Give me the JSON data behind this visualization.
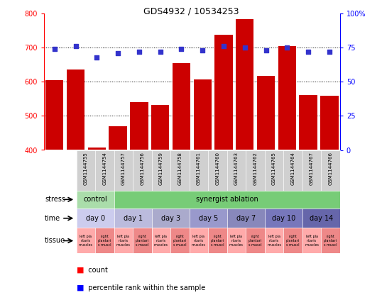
{
  "title": "GDS4932 / 10534253",
  "samples": [
    "GSM1144755",
    "GSM1144754",
    "GSM1144757",
    "GSM1144756",
    "GSM1144759",
    "GSM1144758",
    "GSM1144761",
    "GSM1144760",
    "GSM1144763",
    "GSM1144762",
    "GSM1144765",
    "GSM1144764",
    "GSM1144767",
    "GSM1144766"
  ],
  "counts": [
    605,
    635,
    408,
    470,
    540,
    532,
    655,
    607,
    737,
    783,
    618,
    705,
    562,
    560
  ],
  "percentiles": [
    74,
    76,
    68,
    71,
    72,
    72,
    74,
    73,
    76,
    75,
    73,
    75,
    72,
    72
  ],
  "ylim_left": [
    400,
    800
  ],
  "ylim_right": [
    0,
    100
  ],
  "yticks_left": [
    400,
    500,
    600,
    700,
    800
  ],
  "yticks_right": [
    0,
    25,
    50,
    75,
    100
  ],
  "bar_color": "#cc0000",
  "dot_color": "#3333cc",
  "xticklabel_bg": "#d0d0d0",
  "stress_control_color": "#aaddaa",
  "stress_ablation_color": "#77cc77",
  "time_colors": [
    "#ccccee",
    "#bbbbdd",
    "#aaaacc",
    "#9999cc",
    "#8888bb",
    "#7777bb",
    "#6666aa"
  ],
  "tissue_left_color": "#ffaaaa",
  "tissue_right_color": "#ee8888",
  "n_samples": 14,
  "stress_spans": [
    [
      0,
      2,
      "control"
    ],
    [
      2,
      14,
      "synergist ablation"
    ]
  ],
  "time_spans": [
    [
      0,
      2,
      "day 0"
    ],
    [
      2,
      4,
      "day 1"
    ],
    [
      4,
      6,
      "day 3"
    ],
    [
      6,
      8,
      "day 5"
    ],
    [
      8,
      10,
      "day 7"
    ],
    [
      10,
      12,
      "day 10"
    ],
    [
      12,
      14,
      "day 14"
    ]
  ]
}
